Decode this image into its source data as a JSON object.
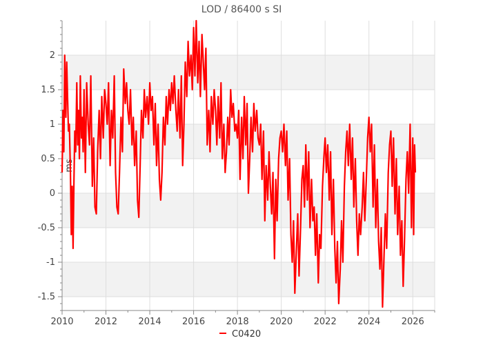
{
  "chart_data": {
    "type": "line",
    "title": "LOD / 86400 s SI",
    "xlabel": "",
    "ylabel": "ms",
    "xlim": [
      2010.0,
      2027.0
    ],
    "ylim": [
      -1.7,
      2.5
    ],
    "x_ticks": [
      2010,
      2012,
      2014,
      2016,
      2018,
      2020,
      2022,
      2024,
      2026
    ],
    "x_tick_labels": [
      "2010",
      "2012",
      "2014",
      "2016",
      "2018",
      "2020",
      "2022",
      "2024",
      "2026"
    ],
    "y_ticks": [
      -1.5,
      -1,
      -0.5,
      0,
      0.5,
      1,
      1.5,
      2
    ],
    "y_tick_labels": [
      "-1.5",
      "-1",
      "-0.5",
      "0",
      "0.5",
      "1",
      "1.5",
      "2"
    ],
    "grid": true,
    "legend_position": "bottom-center",
    "series": [
      {
        "name": "C0420",
        "color": "#ff0000",
        "x": [
          2010.0,
          2010.04,
          2010.08,
          2010.12,
          2010.17,
          2010.21,
          2010.25,
          2010.29,
          2010.33,
          2010.38,
          2010.42,
          2010.46,
          2010.5,
          2010.54,
          2010.58,
          2010.62,
          2010.67,
          2010.71,
          2010.75,
          2010.79,
          2010.83,
          2010.88,
          2010.92,
          2010.96,
          2011.0,
          2011.06,
          2011.12,
          2011.19,
          2011.25,
          2011.31,
          2011.38,
          2011.44,
          2011.5,
          2011.56,
          2011.62,
          2011.69,
          2011.75,
          2011.81,
          2011.88,
          2011.94,
          2012.0,
          2012.06,
          2012.12,
          2012.19,
          2012.25,
          2012.31,
          2012.38,
          2012.44,
          2012.5,
          2012.56,
          2012.62,
          2012.69,
          2012.75,
          2012.81,
          2012.88,
          2012.94,
          2013.0,
          2013.06,
          2013.12,
          2013.19,
          2013.25,
          2013.31,
          2013.38,
          2013.44,
          2013.5,
          2013.56,
          2013.62,
          2013.69,
          2013.75,
          2013.81,
          2013.88,
          2013.94,
          2014.0,
          2014.06,
          2014.12,
          2014.19,
          2014.25,
          2014.31,
          2014.38,
          2014.44,
          2014.5,
          2014.56,
          2014.62,
          2014.69,
          2014.75,
          2014.81,
          2014.88,
          2014.94,
          2015.0,
          2015.06,
          2015.12,
          2015.19,
          2015.25,
          2015.31,
          2015.38,
          2015.44,
          2015.5,
          2015.56,
          2015.62,
          2015.69,
          2015.75,
          2015.81,
          2015.88,
          2015.94,
          2016.0,
          2016.06,
          2016.12,
          2016.19,
          2016.25,
          2016.31,
          2016.38,
          2016.44,
          2016.5,
          2016.56,
          2016.62,
          2016.69,
          2016.75,
          2016.81,
          2016.88,
          2016.94,
          2017.0,
          2017.06,
          2017.12,
          2017.19,
          2017.25,
          2017.31,
          2017.38,
          2017.44,
          2017.5,
          2017.56,
          2017.62,
          2017.69,
          2017.75,
          2017.81,
          2017.88,
          2017.94,
          2018.0,
          2018.06,
          2018.12,
          2018.19,
          2018.25,
          2018.31,
          2018.38,
          2018.44,
          2018.5,
          2018.56,
          2018.62,
          2018.69,
          2018.75,
          2018.81,
          2018.88,
          2018.94,
          2019.0,
          2019.06,
          2019.12,
          2019.19,
          2019.25,
          2019.31,
          2019.38,
          2019.44,
          2019.5,
          2019.56,
          2019.62,
          2019.69,
          2019.75,
          2019.81,
          2019.88,
          2019.94,
          2020.0,
          2020.06,
          2020.12,
          2020.19,
          2020.25,
          2020.31,
          2020.38,
          2020.44,
          2020.5,
          2020.56,
          2020.62,
          2020.69,
          2020.75,
          2020.81,
          2020.88,
          2020.94,
          2021.0,
          2021.06,
          2021.12,
          2021.19,
          2021.25,
          2021.31,
          2021.38,
          2021.44,
          2021.5,
          2021.56,
          2021.62,
          2021.69,
          2021.75,
          2021.81,
          2021.88,
          2021.94,
          2022.0,
          2022.06,
          2022.12,
          2022.19,
          2022.25,
          2022.31,
          2022.38,
          2022.44,
          2022.5,
          2022.56,
          2022.62,
          2022.69,
          2022.75,
          2022.81,
          2022.88,
          2022.94,
          2023.0,
          2023.06,
          2023.12,
          2023.19,
          2023.25,
          2023.31,
          2023.38,
          2023.44,
          2023.5,
          2023.56,
          2023.62,
          2023.69,
          2023.75,
          2023.81,
          2023.88,
          2023.94,
          2024.0,
          2024.06,
          2024.12,
          2024.19,
          2024.25,
          2024.31,
          2024.38,
          2024.44,
          2024.5,
          2024.56,
          2024.62,
          2024.69,
          2024.75,
          2024.81,
          2024.88,
          2024.94,
          2025.0,
          2025.06,
          2025.12,
          2025.19,
          2025.25,
          2025.31,
          2025.38,
          2025.44,
          2025.5,
          2025.56,
          2025.62,
          2025.69,
          2025.75,
          2025.81,
          2025.88,
          2025.94,
          2026.0,
          2026.04,
          2026.08,
          2026.12
        ],
        "y": [
          0.3,
          1.2,
          0.6,
          2.0,
          1.1,
          1.9,
          1.4,
          0.9,
          1.0,
          0.3,
          -0.6,
          0.1,
          -0.8,
          0.2,
          0.9,
          0.6,
          1.6,
          0.7,
          1.2,
          0.5,
          1.7,
          0.8,
          1.1,
          0.6,
          1.5,
          0.3,
          1.6,
          1.0,
          0.7,
          1.7,
          0.1,
          0.8,
          -0.2,
          -0.3,
          0.6,
          1.2,
          0.5,
          1.4,
          0.8,
          1.5,
          1.3,
          1.0,
          1.6,
          0.4,
          1.2,
          0.8,
          1.7,
          0.3,
          -0.2,
          -0.3,
          0.3,
          1.1,
          0.6,
          1.8,
          1.3,
          1.6,
          1.2,
          1.0,
          1.5,
          0.7,
          1.1,
          0.4,
          0.9,
          -0.1,
          -0.35,
          0.4,
          1.2,
          0.8,
          1.5,
          1.1,
          1.4,
          1.0,
          1.6,
          1.2,
          1.4,
          0.7,
          1.3,
          0.4,
          1.0,
          0.2,
          -0.1,
          0.3,
          1.1,
          0.7,
          1.4,
          1.0,
          1.5,
          1.2,
          1.6,
          1.3,
          1.7,
          1.2,
          0.9,
          1.5,
          0.8,
          1.7,
          0.4,
          1.0,
          1.9,
          1.4,
          2.2,
          1.7,
          2.0,
          1.5,
          2.4,
          1.7,
          2.5,
          1.6,
          2.2,
          1.4,
          2.3,
          1.9,
          1.5,
          2.1,
          0.7,
          1.2,
          0.6,
          1.4,
          1.0,
          1.5,
          1.2,
          0.7,
          1.4,
          0.8,
          1.6,
          0.5,
          1.0,
          0.3,
          0.6,
          1.1,
          0.7,
          1.5,
          1.1,
          1.3,
          0.9,
          1.0,
          0.8,
          1.2,
          0.2,
          1.1,
          0.5,
          1.4,
          0.7,
          1.3,
          0.0,
          0.5,
          1.1,
          0.6,
          1.3,
          0.9,
          1.2,
          0.8,
          0.7,
          1.0,
          0.2,
          0.9,
          -0.4,
          0.4,
          -0.1,
          0.6,
          0.1,
          -0.3,
          0.3,
          -0.95,
          0.2,
          -0.4,
          0.5,
          0.8,
          0.9,
          0.6,
          1.0,
          0.4,
          0.9,
          -0.1,
          0.5,
          -0.6,
          -1.0,
          -0.4,
          -1.45,
          -0.8,
          -0.3,
          -1.2,
          -0.5,
          0.2,
          0.4,
          -0.2,
          0.7,
          -0.1,
          0.6,
          -0.5,
          0.2,
          -0.4,
          -0.2,
          -0.9,
          -0.3,
          -1.3,
          -0.6,
          -0.8,
          0.1,
          0.5,
          0.8,
          0.3,
          0.7,
          -0.1,
          0.6,
          -0.6,
          0.2,
          -0.8,
          -1.3,
          -0.7,
          -1.6,
          -1.1,
          -0.4,
          -1.0,
          0.1,
          0.6,
          0.9,
          0.4,
          1.0,
          0.2,
          0.8,
          -0.2,
          0.5,
          -0.4,
          -0.9,
          -0.3,
          -0.6,
          -0.2,
          0.3,
          -0.4,
          0.2,
          0.8,
          1.1,
          0.6,
          1.0,
          -0.2,
          0.7,
          -0.5,
          0.2,
          -0.7,
          -1.1,
          -0.5,
          -1.65,
          -0.9,
          -0.3,
          -0.8,
          0.3,
          0.7,
          0.9,
          0.1,
          0.8,
          -0.3,
          0.5,
          -0.6,
          0.1,
          -0.9,
          -0.4,
          -1.35,
          -0.7,
          0.2,
          0.6,
          0.0,
          1.0,
          -0.5,
          0.8,
          -0.6,
          0.7,
          0.3
        ]
      }
    ]
  }
}
